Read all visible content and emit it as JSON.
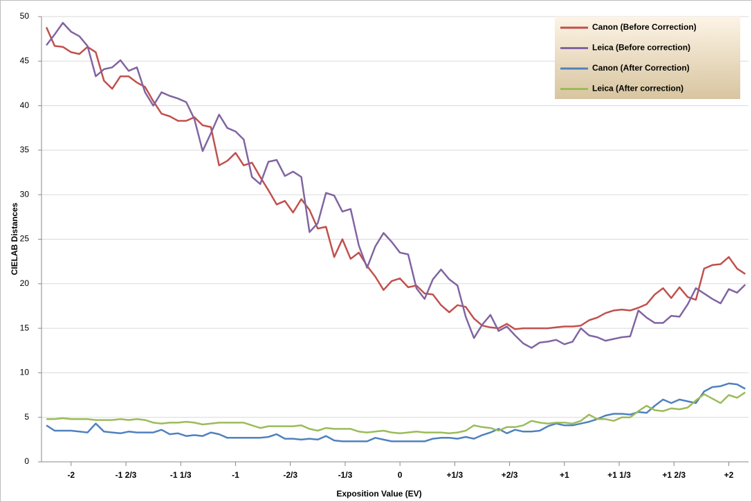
{
  "chart_data": {
    "type": "line",
    "x_label": "Exposition Value (EV)",
    "y_label": "CIELAB Distances",
    "x": [
      -2.15,
      -2.1,
      -2.05,
      -2,
      -1.95,
      -1.9,
      -1.85,
      -1.8,
      -1.75,
      -1.7,
      -1.65,
      -1.6,
      -1.55,
      -1.5,
      -1.45,
      -1.4,
      -1.35,
      -1.3,
      -1.25,
      -1.2,
      -1.15,
      -1.1,
      -1.05,
      -1,
      -0.95,
      -0.9,
      -0.85,
      -0.8,
      -0.75,
      -0.7,
      -0.65,
      -0.6,
      -0.55,
      -0.5,
      -0.45,
      -0.4,
      -0.35,
      -0.3,
      -0.25,
      -0.2,
      -0.15,
      -0.1,
      -0.05,
      0,
      0.05,
      0.1,
      0.15,
      0.2,
      0.25,
      0.3,
      0.35,
      0.4,
      0.45,
      0.5,
      0.55,
      0.6,
      0.65,
      0.7,
      0.75,
      0.8,
      0.85,
      0.9,
      0.95,
      1,
      1.05,
      1.1,
      1.15,
      1.2,
      1.25,
      1.3,
      1.35,
      1.4,
      1.45,
      1.5,
      1.55,
      1.6,
      1.65,
      1.7,
      1.75,
      1.8,
      1.85,
      1.9,
      1.95,
      2,
      2.05,
      2.1
    ],
    "series": [
      {
        "name": "Canon (Before Correction)",
        "color": "#c0504d",
        "values": [
          48.8,
          46.7,
          46.6,
          46,
          45.8,
          46.6,
          46,
          42.8,
          41.9,
          43.3,
          43.3,
          42.6,
          42.1,
          40.5,
          39.1,
          38.8,
          38.3,
          38.3,
          38.7,
          37.8,
          37.6,
          33.3,
          33.8,
          34.7,
          33.3,
          33.6,
          32,
          30.5,
          28.9,
          29.3,
          28,
          29.5,
          28.3,
          26.2,
          26.4,
          23,
          25,
          22.8,
          23.5,
          22,
          20.8,
          19.3,
          20.3,
          20.6,
          19.6,
          19.8,
          18.9,
          18.8,
          17.6,
          16.8,
          17.6,
          17.4,
          16.1,
          15.3,
          15.1,
          15,
          15.5,
          14.9,
          15,
          15,
          15,
          15,
          15.1,
          15.2,
          15.2,
          15.3,
          15.9,
          16.2,
          16.7,
          17,
          17.1,
          17,
          17.3,
          17.7,
          18.8,
          19.5,
          18.4,
          19.6,
          18.5,
          18.2,
          21.7,
          22.1,
          22.2,
          23,
          21.7,
          21.1
        ]
      },
      {
        "name": "Leica (Before correction)",
        "color": "#8064a2",
        "values": [
          46.8,
          48,
          49.3,
          48.3,
          47.8,
          46.7,
          43.3,
          44.1,
          44.3,
          45.1,
          43.9,
          44.3,
          41.5,
          40,
          41.5,
          41.1,
          40.8,
          40.4,
          38.5,
          34.9,
          36.9,
          39,
          37.5,
          37.1,
          36.2,
          32,
          31.2,
          33.7,
          33.9,
          32.1,
          32.6,
          32,
          25.8,
          26.8,
          30.2,
          29.9,
          28.1,
          28.4,
          24.3,
          21.8,
          24.2,
          25.7,
          24.7,
          23.5,
          23.3,
          19.5,
          18.3,
          20.5,
          21.6,
          20.5,
          19.8,
          16.3,
          13.9,
          15.4,
          16.5,
          14.7,
          15.2,
          14.2,
          13.3,
          12.8,
          13.4,
          13.5,
          13.7,
          13.2,
          13.5,
          15,
          14.2,
          14,
          13.6,
          13.8,
          14,
          14.1,
          17,
          16.2,
          15.6,
          15.6,
          16.4,
          16.3,
          17.7,
          19.5,
          18.9,
          18.3,
          17.8,
          19.4,
          19,
          19.9
        ]
      },
      {
        "name": "Canon (After Correction)",
        "color": "#4f81bd",
        "values": [
          4.1,
          3.5,
          3.5,
          3.5,
          3.4,
          3.3,
          4.3,
          3.4,
          3.3,
          3.2,
          3.4,
          3.3,
          3.3,
          3.3,
          3.6,
          3.1,
          3.2,
          2.9,
          3,
          2.9,
          3.3,
          3.1,
          2.7,
          2.7,
          2.7,
          2.7,
          2.7,
          2.8,
          3.1,
          2.6,
          2.6,
          2.5,
          2.6,
          2.5,
          2.9,
          2.4,
          2.3,
          2.3,
          2.3,
          2.3,
          2.7,
          2.5,
          2.3,
          2.3,
          2.3,
          2.3,
          2.3,
          2.6,
          2.7,
          2.7,
          2.6,
          2.8,
          2.6,
          3,
          3.3,
          3.7,
          3.2,
          3.6,
          3.4,
          3.4,
          3.5,
          4,
          4.3,
          4.1,
          4.1,
          4.3,
          4.5,
          4.8,
          5.2,
          5.4,
          5.4,
          5.3,
          5.6,
          5.5,
          6.3,
          7,
          6.6,
          7,
          6.8,
          6.6,
          7.9,
          8.4,
          8.5,
          8.8,
          8.7,
          8.2
        ]
      },
      {
        "name": "Leica (After correction)",
        "color": "#9bbb59",
        "values": [
          4.8,
          4.8,
          4.9,
          4.8,
          4.8,
          4.8,
          4.7,
          4.7,
          4.7,
          4.8,
          4.7,
          4.8,
          4.7,
          4.4,
          4.3,
          4.4,
          4.4,
          4.5,
          4.4,
          4.2,
          4.3,
          4.4,
          4.4,
          4.4,
          4.4,
          4.1,
          3.8,
          4,
          4,
          4,
          4,
          4.1,
          3.7,
          3.5,
          3.8,
          3.7,
          3.7,
          3.7,
          3.4,
          3.3,
          3.4,
          3.5,
          3.3,
          3.2,
          3.3,
          3.4,
          3.3,
          3.3,
          3.3,
          3.2,
          3.3,
          3.5,
          4.1,
          3.9,
          3.8,
          3.5,
          3.9,
          3.9,
          4.1,
          4.6,
          4.4,
          4.3,
          4.4,
          4.4,
          4.3,
          4.6,
          5.3,
          4.8,
          4.8,
          4.6,
          5,
          5,
          5.7,
          6.3,
          5.8,
          5.7,
          6,
          5.9,
          6.1,
          6.9,
          7.6,
          7.1,
          6.6,
          7.5,
          7.2,
          7.8
        ]
      }
    ],
    "xlim": [
      -2.18,
      2.12
    ],
    "ylim": [
      0,
      50
    ],
    "yticks": [
      0,
      5,
      10,
      15,
      20,
      25,
      30,
      35,
      40,
      45,
      50
    ],
    "xticks": [
      -2,
      {
        "value": -1.6667,
        "label": "-1 2/3"
      },
      {
        "value": -1.3333,
        "label": "-1 1/3"
      },
      -1,
      {
        "value": -0.6667,
        "label": "-2/3"
      },
      {
        "value": -0.3333,
        "label": "-1/3"
      },
      0,
      {
        "value": 0.3333,
        "label": "+1/3"
      },
      {
        "value": 0.6667,
        "label": "+2/3"
      },
      {
        "value": 1,
        "label": "+1"
      },
      {
        "value": 1.3333,
        "label": "+1 1/3"
      },
      {
        "value": 1.6667,
        "label": "+1 2/3"
      },
      {
        "value": 2,
        "label": "+2"
      }
    ],
    "grid": true,
    "legend": "top-right"
  }
}
